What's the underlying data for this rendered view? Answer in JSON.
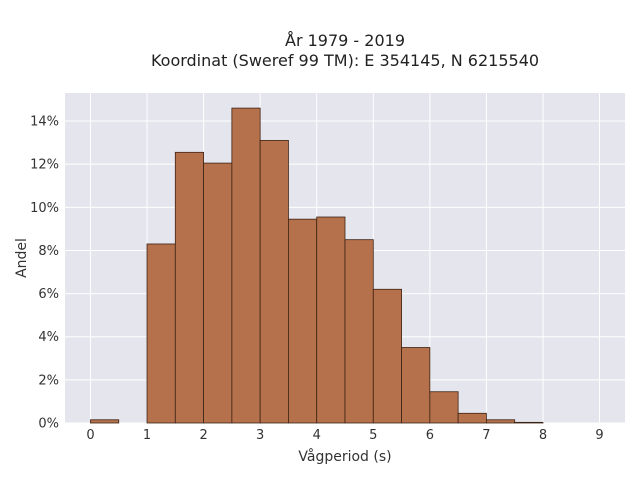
{
  "chart_data": {
    "type": "bar",
    "title_line1": "År 1979 - 2019",
    "title_line2": "Koordinat (Sweref 99 TM): E 354145, N 6215540",
    "xlabel": "Vågperiod (s)",
    "ylabel": "Andel",
    "bin_width": 0.5,
    "bins": [
      {
        "start": 0.0,
        "value": 0.15
      },
      {
        "start": 0.5,
        "value": 0.0
      },
      {
        "start": 1.0,
        "value": 8.3
      },
      {
        "start": 1.5,
        "value": 12.55
      },
      {
        "start": 2.0,
        "value": 12.05
      },
      {
        "start": 2.5,
        "value": 14.6
      },
      {
        "start": 3.0,
        "value": 13.1
      },
      {
        "start": 3.5,
        "value": 9.45
      },
      {
        "start": 4.0,
        "value": 9.55
      },
      {
        "start": 4.5,
        "value": 8.5
      },
      {
        "start": 5.0,
        "value": 6.2
      },
      {
        "start": 5.5,
        "value": 3.5
      },
      {
        "start": 6.0,
        "value": 1.45
      },
      {
        "start": 6.5,
        "value": 0.45
      },
      {
        "start": 7.0,
        "value": 0.15
      },
      {
        "start": 7.5,
        "value": 0.03
      }
    ],
    "xticks": [
      0,
      1,
      2,
      3,
      4,
      5,
      6,
      7,
      8,
      9
    ],
    "xtick_labels": [
      "0",
      "1",
      "2",
      "3",
      "4",
      "5",
      "6",
      "7",
      "8",
      "9"
    ],
    "yticks": [
      0,
      2,
      4,
      6,
      8,
      10,
      12,
      14
    ],
    "ytick_labels": [
      "0%",
      "2%",
      "4%",
      "6%",
      "8%",
      "10%",
      "12%",
      "14%"
    ],
    "xlim": [
      -0.45,
      9.45
    ],
    "ylim": [
      0,
      15.3
    ],
    "grid": true,
    "colors": {
      "bar_fill": "#b5714b",
      "bar_edge": "#3d2314",
      "plot_background": "#e5e5ee",
      "grid": "#ffffff"
    }
  }
}
